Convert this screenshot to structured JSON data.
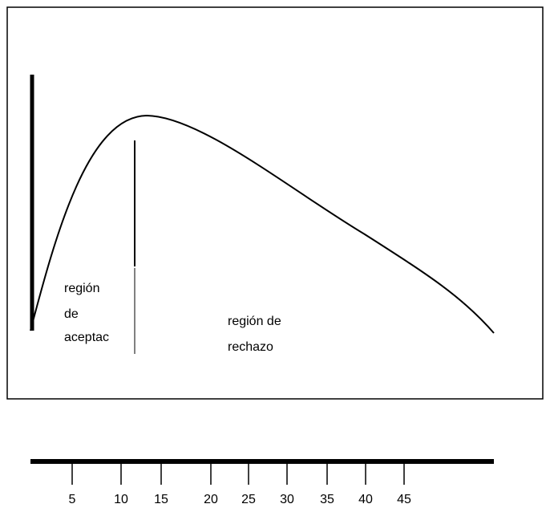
{
  "acceptance_region": {
    "lines": [
      "región",
      "de",
      "aceptac"
    ]
  },
  "rejection_region": {
    "lines": [
      "región de",
      "rechazo"
    ]
  },
  "axis": {
    "tick_labels": [
      "5",
      "10",
      "15",
      "20",
      "25",
      "30",
      "35",
      "40",
      "45"
    ]
  },
  "colors": {
    "line": "#000000",
    "background": "#ffffff"
  }
}
